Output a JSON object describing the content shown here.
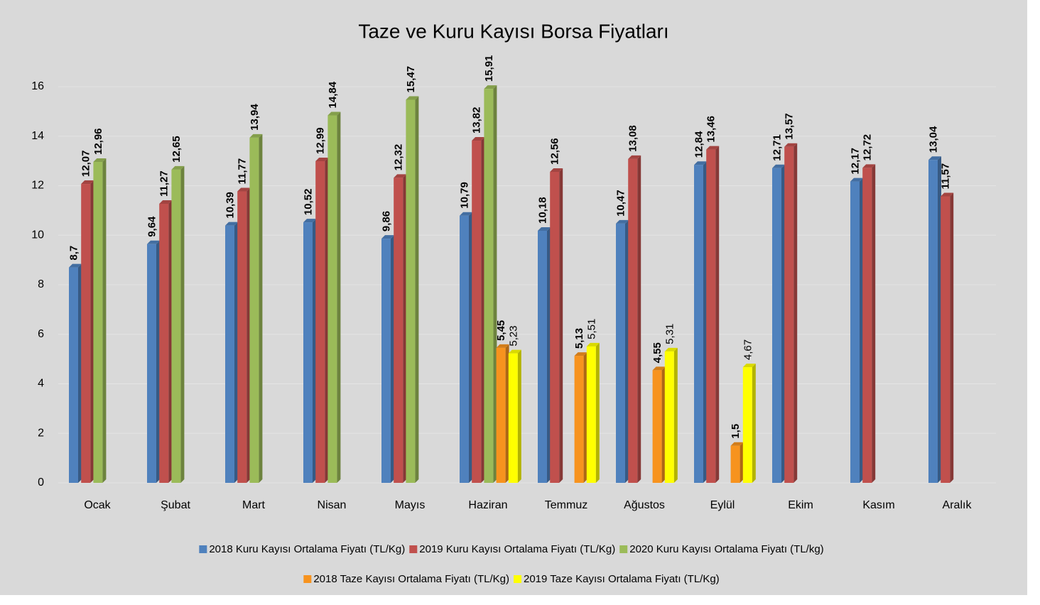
{
  "chart_data": {
    "type": "bar",
    "title": "Taze ve Kuru Kayısı Borsa Fiyatları",
    "categories": [
      "Ocak",
      "Şubat",
      "Mart",
      "Nisan",
      "Mayıs",
      "Haziran",
      "Temmuz",
      "Ağustos",
      "Eylül",
      "Ekim",
      "Kasım",
      "Aralık"
    ],
    "series": [
      {
        "name": "2018 Kuru Kayısı Ortalama Fiyatı (TL/Kg)",
        "color": "#4f81bd",
        "label_color": "#6f9fe0",
        "values": [
          8.7,
          9.64,
          10.39,
          10.52,
          9.86,
          10.79,
          10.18,
          10.47,
          12.84,
          12.71,
          12.17,
          13.04
        ],
        "value_labels": [
          "8,7",
          "9,64",
          "10,39",
          "10,52",
          "9,86",
          "10,79",
          "10,18",
          "10,47",
          "12,84",
          "12,71",
          "12,17",
          "13,04"
        ]
      },
      {
        "name": "2019 Kuru Kayısı Ortalama Fiyatı (TL/Kg)",
        "color": "#c0504d",
        "label_color": "#c00000",
        "values": [
          12.07,
          11.27,
          11.77,
          12.99,
          12.32,
          13.82,
          12.56,
          13.08,
          13.46,
          13.57,
          12.72,
          11.57
        ],
        "value_labels": [
          "12,07",
          "11,27",
          "11,77",
          "12,99",
          "12,32",
          "13,82",
          "12,56",
          "13,08",
          "13,46",
          "13,57",
          "12,72",
          "11,57"
        ]
      },
      {
        "name": "2020 Kuru Kayısı Ortalama Fiyatı (TL/kg)",
        "color": "#9bbb59",
        "label_color": "#4f6228",
        "values": [
          12.96,
          12.65,
          13.94,
          14.84,
          15.47,
          15.91,
          null,
          null,
          null,
          null,
          null,
          null
        ],
        "value_labels": [
          "12,96",
          "12,65",
          "13,94",
          "14,84",
          "15,47",
          "15,91",
          null,
          null,
          null,
          null,
          null,
          null
        ]
      },
      {
        "name": "2018 Taze Kayısı Ortalama Fiyatı (TL/Kg)",
        "color": "#f7931e",
        "label_color": "#f08000",
        "values": [
          null,
          null,
          null,
          null,
          null,
          5.45,
          5.13,
          4.55,
          1.5,
          null,
          null,
          null
        ],
        "value_labels": [
          null,
          null,
          null,
          null,
          null,
          "5,45",
          "5,13",
          "4,55",
          "1,5",
          null,
          null,
          null
        ]
      },
      {
        "name": "2019 Taze Kayısı Ortalama Fiyatı (TL/Kg)",
        "color": "#ffff00",
        "label_color": "#000000",
        "values": [
          null,
          null,
          null,
          null,
          null,
          5.23,
          5.51,
          5.31,
          4.67,
          null,
          null,
          null
        ],
        "value_labels": [
          null,
          null,
          null,
          null,
          null,
          "5,23",
          "5,51",
          "5,31",
          "4,67",
          null,
          null,
          null
        ]
      }
    ],
    "ylim": [
      0,
      16
    ],
    "yticks": [
      0,
      2,
      4,
      6,
      8,
      10,
      12,
      14,
      16
    ],
    "grid": true,
    "legend": "bottom"
  }
}
